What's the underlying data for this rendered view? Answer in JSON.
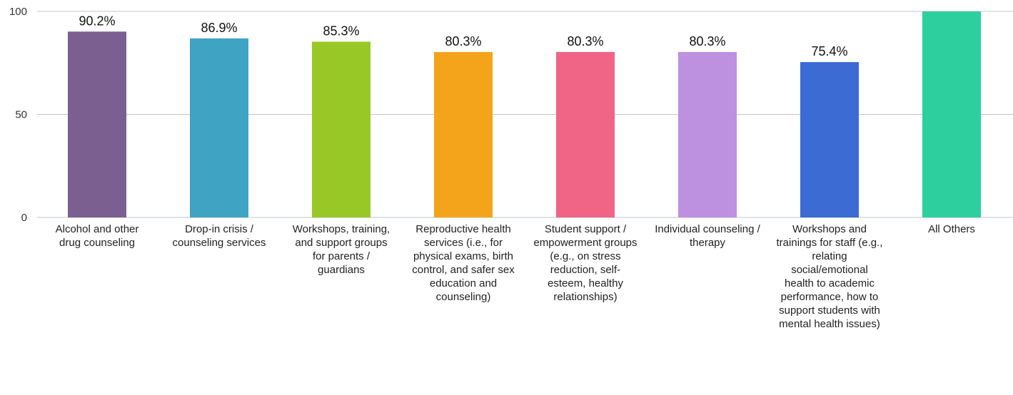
{
  "chart_data": {
    "type": "bar",
    "categories": [
      "Alcohol and other drug counseling",
      "Drop-in crisis / counseling services",
      "Workshops, training, and support groups for parents / guardians",
      "Reproductive health services (i.e., for physical exams, birth control, and safer sex education and counseling)",
      "Student support / empowerment groups (e.g., on stress reduction, self-esteem, healthy relationships)",
      "Individual counseling / therapy",
      "Workshops and trainings for staff (e.g., relating social/emotional health to academic performance, how to support students with mental health issues)",
      "All Others"
    ],
    "values": [
      90.2,
      86.9,
      85.3,
      80.3,
      80.3,
      80.3,
      75.4,
      100
    ],
    "value_labels": [
      "90.2%",
      "86.9%",
      "85.3%",
      "80.3%",
      "80.3%",
      "80.3%",
      "75.4%",
      ""
    ],
    "colors": [
      "#7b5f91",
      "#3fa3c3",
      "#98c826",
      "#f4a41b",
      "#f06486",
      "#bd90e0",
      "#3c6bd4",
      "#2ecf9f"
    ],
    "yticks": [
      "0",
      "50",
      "100"
    ],
    "ylim": [
      0,
      100
    ],
    "grid": true,
    "title": "",
    "xlabel": "",
    "ylabel": ""
  }
}
